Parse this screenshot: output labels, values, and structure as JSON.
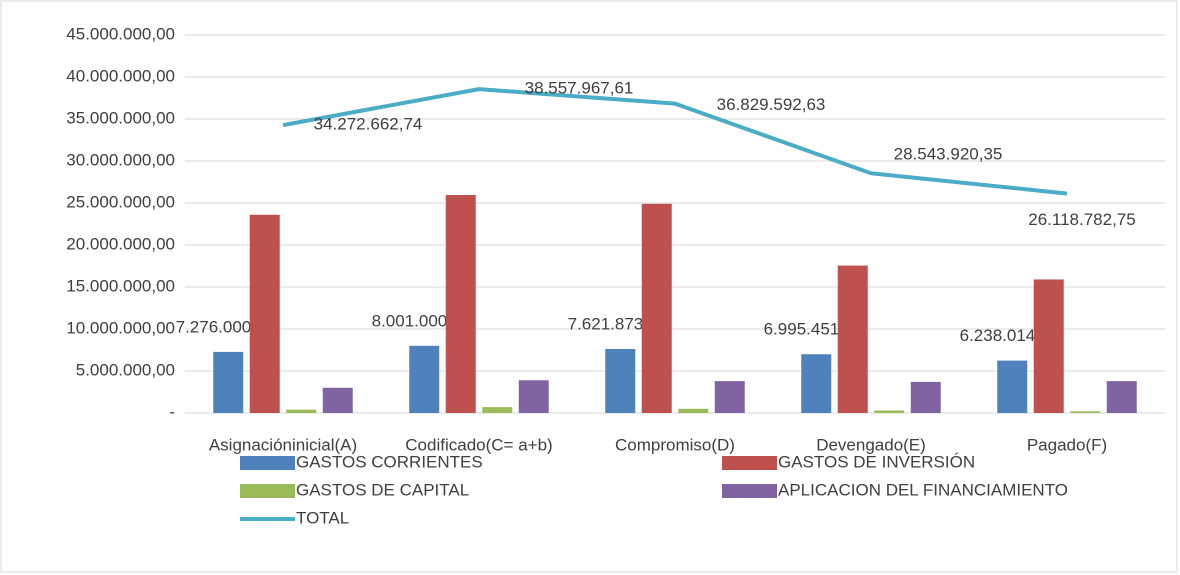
{
  "chart_data": {
    "type": "bar",
    "categories": [
      "Asignacióninicial(A)",
      "Codificado(C= a+b)",
      "Compromiso(D)",
      "Devengado(E)",
      "Pagado(F)"
    ],
    "series": [
      {
        "name": "GASTOS CORRIENTES",
        "color": "#4f81bd",
        "values": [
          7276000,
          8001000,
          7621873.38,
          6995451.6,
          6238014.93
        ],
        "value_labels": [
          "7.276.000,00",
          "8.001.000,00",
          "7.621.873,38",
          "6.995.451,60",
          "6.238.014,93"
        ]
      },
      {
        "name": "GASTOS DE INVERSIÓN",
        "color": "#c0504d",
        "values": [
          23600000,
          25950000,
          24900000,
          17550000,
          15900000
        ]
      },
      {
        "name": "GASTOS DE CAPITAL",
        "color": "#9bbb59",
        "values": [
          400000,
          700000,
          500000,
          300000,
          200000
        ]
      },
      {
        "name": "APLICACION DEL FINANCIAMIENTO",
        "color": "#8064a2",
        "values": [
          3000000,
          3900000,
          3800000,
          3700000,
          3800000
        ]
      },
      {
        "name": "TOTAL",
        "type": "line",
        "color": "#4bacc6",
        "values": [
          34272662.74,
          38557967.61,
          36829592.63,
          28543920.35,
          26118782.75
        ],
        "value_labels": [
          "34.272.662,74",
          "38.557.967,61",
          "36.829.592,63",
          "28.543.920,35",
          "26.118.782,75"
        ]
      }
    ],
    "ylim": [
      0,
      45000000
    ],
    "yticks": [
      {
        "value": 0,
        "label": "-"
      },
      {
        "value": 5000000,
        "label": "5.000.000,00"
      },
      {
        "value": 10000000,
        "label": "10.000.000,00"
      },
      {
        "value": 15000000,
        "label": "15.000.000,00"
      },
      {
        "value": 20000000,
        "label": "20.000.000,00"
      },
      {
        "value": 25000000,
        "label": "25.000.000,00"
      },
      {
        "value": 30000000,
        "label": "30.000.000,00"
      },
      {
        "value": 35000000,
        "label": "35.000.000,00"
      },
      {
        "value": 40000000,
        "label": "40.000.000,00"
      },
      {
        "value": 45000000,
        "label": "45.000.000,00"
      }
    ],
    "grid": true
  }
}
